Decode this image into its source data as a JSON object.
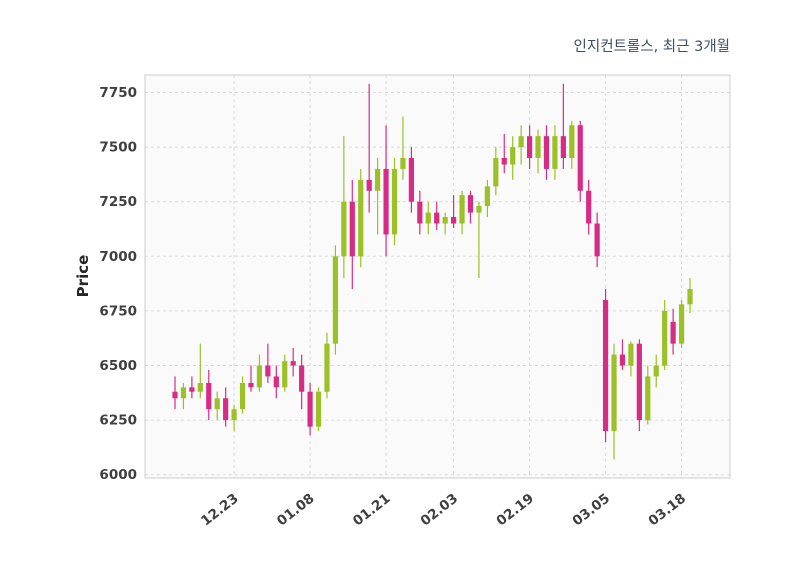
{
  "page": {
    "background": "#ffffff"
  },
  "chart_data": {
    "type": "candlestick",
    "title": "인지컨트롤스, 최근 3개월",
    "ylabel": "Price",
    "yticks": [
      6000,
      6250,
      6500,
      6750,
      7000,
      7250,
      7500,
      7750
    ],
    "ylim": [
      5985,
      7830
    ],
    "xtick_labels": [
      "12.23",
      "01.08",
      "01.21",
      "02.03",
      "02.19",
      "03.05",
      "03.18"
    ],
    "xtick_indices": [
      7,
      16,
      25,
      33,
      42,
      51,
      60
    ],
    "grid": true,
    "grid_style": "dashed",
    "legend": "none",
    "colors": {
      "up": "#9bc126",
      "down": "#d62c86",
      "plot_bg": "#fafafa",
      "grid": "#d9d9d9",
      "border": "#cccccc",
      "tick_text": "#3f3f3f",
      "title_text": "#3d4f61",
      "ylabel_text": "#262626"
    },
    "ohlc_order": [
      "open",
      "high",
      "low",
      "close"
    ],
    "candles": [
      [
        6380,
        6450,
        6300,
        6350
      ],
      [
        6350,
        6420,
        6300,
        6400
      ],
      [
        6400,
        6450,
        6350,
        6380
      ],
      [
        6380,
        6600,
        6350,
        6420
      ],
      [
        6420,
        6480,
        6250,
        6300
      ],
      [
        6300,
        6380,
        6250,
        6350
      ],
      [
        6350,
        6400,
        6220,
        6250
      ],
      [
        6250,
        6320,
        6200,
        6300
      ],
      [
        6300,
        6450,
        6280,
        6420
      ],
      [
        6420,
        6500,
        6380,
        6400
      ],
      [
        6400,
        6550,
        6380,
        6500
      ],
      [
        6500,
        6600,
        6420,
        6450
      ],
      [
        6450,
        6500,
        6350,
        6400
      ],
      [
        6400,
        6550,
        6380,
        6520
      ],
      [
        6520,
        6580,
        6450,
        6500
      ],
      [
        6500,
        6550,
        6300,
        6380
      ],
      [
        6380,
        6420,
        6180,
        6220
      ],
      [
        6220,
        6400,
        6200,
        6380
      ],
      [
        6380,
        6650,
        6350,
        6600
      ],
      [
        6600,
        7050,
        6550,
        7000
      ],
      [
        7000,
        7550,
        6900,
        7250
      ],
      [
        7250,
        7350,
        6850,
        7000
      ],
      [
        7000,
        7400,
        6950,
        7350
      ],
      [
        7350,
        7790,
        7200,
        7300
      ],
      [
        7300,
        7450,
        7100,
        7400
      ],
      [
        7400,
        7600,
        7000,
        7100
      ],
      [
        7100,
        7450,
        7050,
        7400
      ],
      [
        7400,
        7640,
        7350,
        7450
      ],
      [
        7450,
        7500,
        7200,
        7250
      ],
      [
        7250,
        7300,
        7100,
        7150
      ],
      [
        7150,
        7250,
        7100,
        7200
      ],
      [
        7200,
        7250,
        7120,
        7150
      ],
      [
        7150,
        7200,
        7100,
        7180
      ],
      [
        7180,
        7280,
        7130,
        7150
      ],
      [
        7150,
        7300,
        7100,
        7280
      ],
      [
        7280,
        7300,
        7150,
        7200
      ],
      [
        7200,
        7250,
        6900,
        7230
      ],
      [
        7230,
        7350,
        7180,
        7320
      ],
      [
        7320,
        7500,
        7280,
        7450
      ],
      [
        7450,
        7560,
        7380,
        7420
      ],
      [
        7420,
        7550,
        7350,
        7500
      ],
      [
        7500,
        7600,
        7420,
        7550
      ],
      [
        7550,
        7600,
        7400,
        7450
      ],
      [
        7450,
        7580,
        7380,
        7550
      ],
      [
        7550,
        7600,
        7350,
        7400
      ],
      [
        7400,
        7600,
        7350,
        7550
      ],
      [
        7550,
        7790,
        7400,
        7450
      ],
      [
        7450,
        7620,
        7400,
        7600
      ],
      [
        7600,
        7620,
        7250,
        7300
      ],
      [
        7300,
        7350,
        7100,
        7150
      ],
      [
        7150,
        7200,
        6950,
        7000
      ],
      [
        6800,
        6850,
        6150,
        6200
      ],
      [
        6200,
        6600,
        6070,
        6550
      ],
      [
        6550,
        6620,
        6480,
        6500
      ],
      [
        6500,
        6610,
        6450,
        6600
      ],
      [
        6600,
        6620,
        6200,
        6250
      ],
      [
        6250,
        6500,
        6230,
        6450
      ],
      [
        6450,
        6550,
        6400,
        6500
      ],
      [
        6500,
        6800,
        6480,
        6750
      ],
      [
        6700,
        6760,
        6550,
        6600
      ],
      [
        6600,
        6800,
        6580,
        6780
      ],
      [
        6780,
        6900,
        6740,
        6850
      ]
    ]
  }
}
